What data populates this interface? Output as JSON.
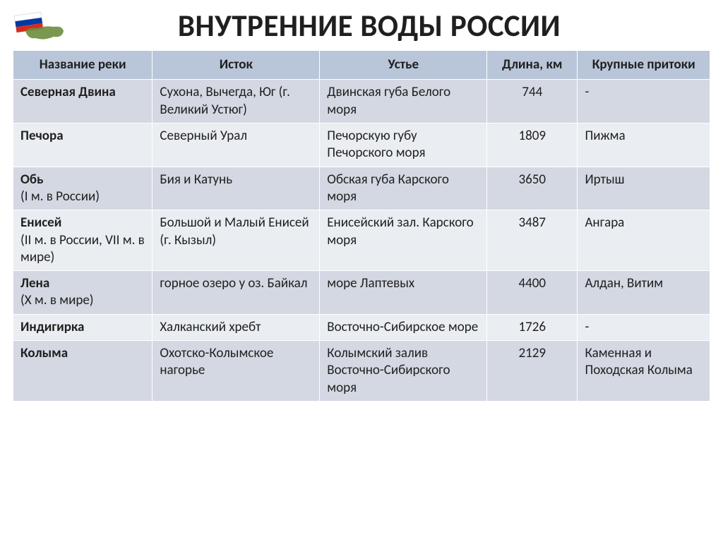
{
  "title": "ВНУТРЕННИЕ ВОДЫ РОССИИ",
  "table": {
    "header_bg": "#b9c6d9",
    "row_bg_even": "#d3d8e2",
    "row_bg_odd": "#eaedf2",
    "border_color": "#ffffff",
    "font_size": 19,
    "title_fontsize": 43,
    "columns": [
      {
        "label": "Название реки",
        "width_pct": 20,
        "align": "left"
      },
      {
        "label": "Исток",
        "width_pct": 24,
        "align": "left"
      },
      {
        "label": "Устье",
        "width_pct": 24,
        "align": "left"
      },
      {
        "label": "Длина, км",
        "width_pct": 13,
        "align": "center"
      },
      {
        "label": "Крупные притоки",
        "width_pct": 19,
        "align": "left"
      }
    ],
    "rows": [
      {
        "name": "Северная Двина",
        "sub": "",
        "source": "Сухона, Вычегда, Юг (г. Великий Устюг)",
        "mouth": "Двинская губа Белого моря",
        "length": "744",
        "tributaries": "-"
      },
      {
        "name": "Печора",
        "sub": "",
        "source": "Северный Урал",
        "mouth": "Печорскую губу Печорского моря",
        "length": "1809",
        "tributaries": "Пижма"
      },
      {
        "name": "Обь",
        "sub": "(I м. в России)",
        "source": " Бия и Катунь",
        "mouth": "Обская губа Карского моря",
        "length": "3650",
        "tributaries": "Иртыш"
      },
      {
        "name": "Енисей",
        "sub": "(II м. в России, VII м. в мире)",
        "source": "Большой и Малый Енисей (г. Кызыл)",
        "mouth": "Енисейский зал. Карского моря",
        "length": "3487",
        "tributaries": "Ангара"
      },
      {
        "name": "Лена",
        "sub": "(X м. в мире)",
        "source": "горное озеро у оз. Байкал",
        "mouth": "море Лаптевых",
        "length": "4400",
        "tributaries": "Алдан, Витим"
      },
      {
        "name": "Индигирка",
        "sub": "",
        "source": "Халканский хребт",
        "mouth": "Восточно-Сибирское море",
        "length": "1726",
        "tributaries": "-"
      },
      {
        "name": "Колыма",
        "sub": "",
        "source": "Охотско-Колымское нагорье",
        "mouth": "Колымский залив Восточно-Сибирского моря",
        "length": "2129",
        "tributaries": "Каменная и Походская Колыма"
      }
    ]
  },
  "flag": {
    "stripes": [
      "#ffffff",
      "#0039a6",
      "#d52b1e"
    ],
    "map_fill": "#5b7a2f"
  }
}
